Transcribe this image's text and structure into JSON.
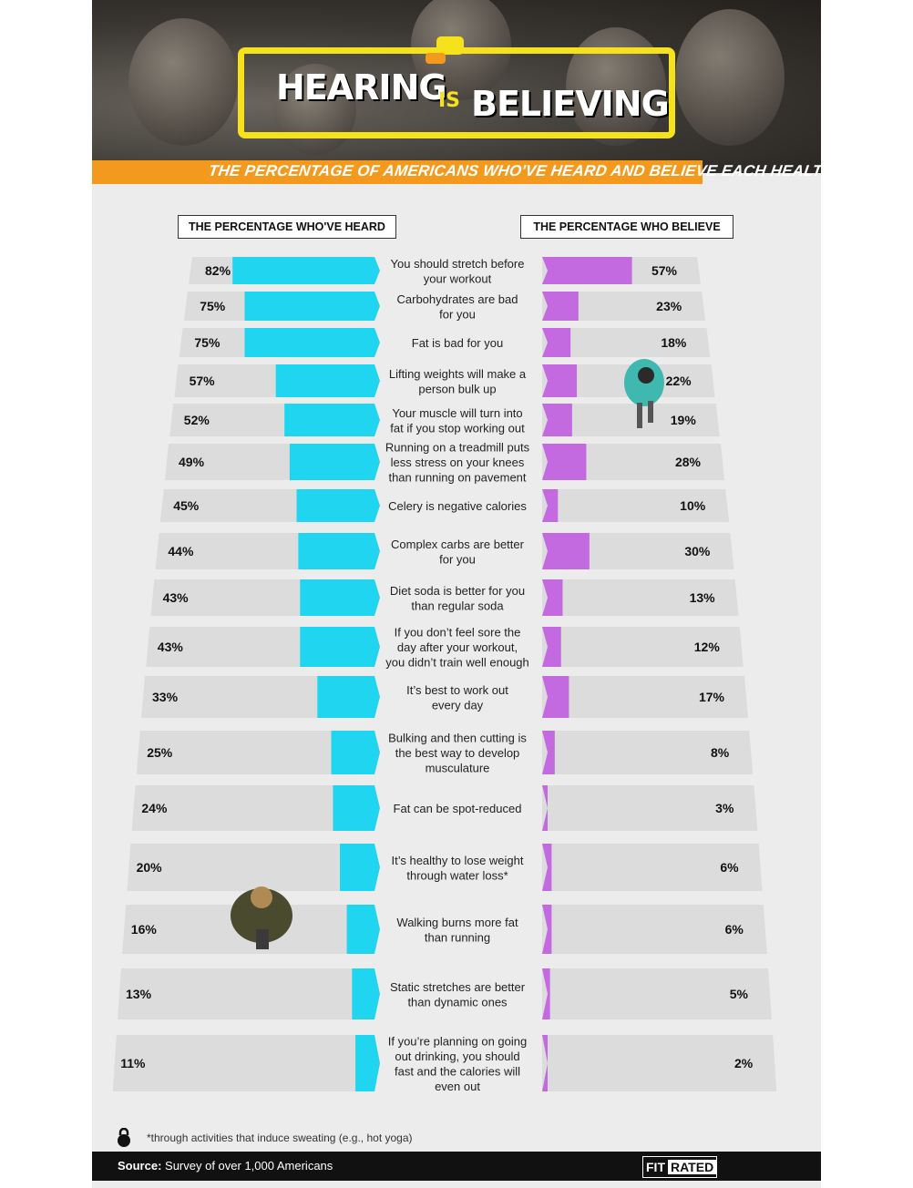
{
  "header": {
    "title_part1": "HEARING",
    "title_part2": "IS",
    "title_part3": "BELIEVING",
    "subtitle": "THE PERCENTAGE OF AMERICANS WHO'VE HEARD AND BELIEVE EACH HEALTH MYTH"
  },
  "chart_data": {
    "type": "bar",
    "title": "HEARING IS BELIEVING",
    "subtitle": "THE PERCENTAGE OF AMERICANS WHO'VE HEARD AND BELIEVE EACH HEALTH MYTH",
    "categories": [
      [
        "You should stretch before",
        "your workout"
      ],
      [
        "Carbohydrates are bad",
        "for you"
      ],
      [
        "Fat is bad for you"
      ],
      [
        "Lifting weights will make a",
        "person bulk up"
      ],
      [
        "Your muscle will turn into",
        "fat if you stop working out"
      ],
      [
        "Running on a treadmill puts",
        "less stress on your knees",
        "than running on pavement"
      ],
      [
        "Celery is negative calories"
      ],
      [
        "Complex carbs are better",
        "for you"
      ],
      [
        "Diet soda is better for you",
        "than regular soda"
      ],
      [
        "If you don’t feel sore the",
        "day after your workout,",
        "you didn’t train well enough"
      ],
      [
        "It’s best to work out",
        "every day"
      ],
      [
        "Bulking and then cutting is",
        "the best way to develop",
        "musculature"
      ],
      [
        "Fat can be spot-reduced"
      ],
      [
        "It’s healthy to lose weight",
        "through water loss*"
      ],
      [
        "Walking burns more fat",
        "than running"
      ],
      [
        "Static stretches are better",
        "than dynamic ones"
      ],
      [
        "If you’re planning on going",
        "out drinking, you should",
        "fast and the calories will",
        "even out"
      ]
    ],
    "series": [
      {
        "name": "THE PERCENTAGE WHO'VE HEARD",
        "color": "#1fd5ef",
        "side": "left",
        "values": [
          82,
          75,
          75,
          57,
          52,
          49,
          45,
          44,
          43,
          43,
          33,
          25,
          24,
          20,
          16,
          13,
          11
        ],
        "labels": [
          "82%",
          "75%",
          "75%",
          "57%",
          "52%",
          "49%",
          "45%",
          "44%",
          "43%",
          "43%",
          "33%",
          "25%",
          "24%",
          "20%",
          "16%",
          "13%",
          "11%"
        ]
      },
      {
        "name": "THE PERCENTAGE WHO BELIEVE",
        "color": "#c46ae0",
        "side": "right",
        "values": [
          57,
          23,
          18,
          22,
          19,
          28,
          10,
          30,
          13,
          12,
          17,
          8,
          3,
          6,
          6,
          5,
          2
        ],
        "labels": [
          "57%",
          "23%",
          "18%",
          "22%",
          "19%",
          "28%",
          "10%",
          "30%",
          "13%",
          "12%",
          "17%",
          "8%",
          "3%",
          "6%",
          "6%",
          "5%",
          "2%"
        ]
      }
    ],
    "xlim": [
      0,
      100
    ],
    "legend": "top"
  },
  "footnote": "*through activities that induce sweating (e.g., hot yoga)",
  "source": {
    "label": "Source:",
    "text": " Survey of over 1,000 Americans"
  },
  "logo": {
    "part1": "FIT",
    "part2": "RATED"
  },
  "colors": {
    "heard": "#1fd5ef",
    "believe": "#c46ae0",
    "accent_yellow": "#f5e11c",
    "accent_orange": "#f39a1e",
    "track": "#dcdcdc"
  }
}
